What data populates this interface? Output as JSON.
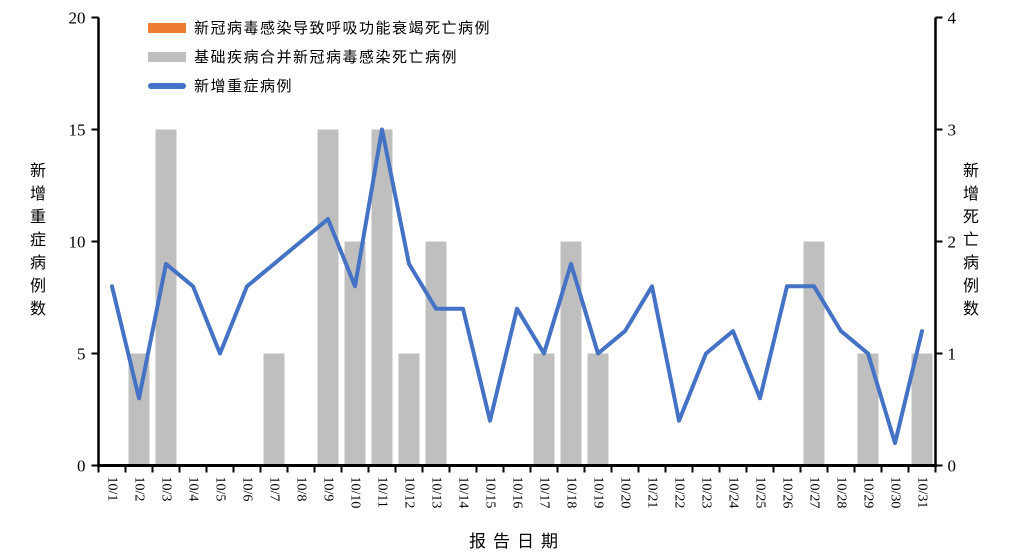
{
  "chart_data": {
    "type": "bar+line",
    "title": "",
    "xlabel": "报告日期",
    "categories": [
      "10/1",
      "10/2",
      "10/3",
      "10/4",
      "10/5",
      "10/6",
      "10/7",
      "10/8",
      "10/9",
      "10/10",
      "10/11",
      "10/12",
      "10/13",
      "10/14",
      "10/15",
      "10/16",
      "10/17",
      "10/18",
      "10/19",
      "10/20",
      "10/21",
      "10/22",
      "10/23",
      "10/24",
      "10/25",
      "10/26",
      "10/27",
      "10/28",
      "10/29",
      "10/30",
      "10/31"
    ],
    "series": [
      {
        "name": "新冠病毒感染导致呼吸功能衰竭死亡病例",
        "type": "bar",
        "axis": "right",
        "color": "#ED7D31",
        "values": [
          0,
          0,
          0,
          0,
          0,
          0,
          0,
          0,
          0,
          0,
          0,
          0,
          0,
          0,
          0,
          0,
          0,
          0,
          0,
          0,
          0,
          0,
          0,
          0,
          0,
          0,
          0,
          0,
          0,
          0,
          0
        ]
      },
      {
        "name": "基础疾病合并新冠病毒感染死亡病例",
        "type": "bar",
        "axis": "right",
        "color": "#BFBFBF",
        "values": [
          0,
          1,
          3,
          0,
          0,
          0,
          1,
          0,
          3,
          2,
          3,
          1,
          2,
          0,
          0,
          0,
          1,
          2,
          1,
          0,
          0,
          0,
          0,
          0,
          0,
          0,
          2,
          0,
          1,
          0,
          1
        ]
      },
      {
        "name": "新增重症病例",
        "type": "line",
        "axis": "left",
        "color": "#4472C4",
        "values": [
          8,
          3,
          9,
          8,
          5,
          8,
          9,
          10,
          11,
          8,
          15,
          9,
          7,
          7,
          2,
          7,
          5,
          9,
          5,
          6,
          8,
          2,
          5,
          6,
          3,
          8,
          8,
          6,
          5,
          1,
          6
        ]
      }
    ],
    "left_axis": {
      "label": "新增重症病例数",
      "min": 0,
      "max": 20,
      "ticks": [
        0,
        5,
        10,
        15,
        20
      ]
    },
    "right_axis": {
      "label": "新增死亡病例数",
      "min": 0,
      "max": 4,
      "ticks": [
        0,
        1,
        2,
        3,
        4
      ]
    },
    "legend_position": "top-left",
    "grid": false,
    "axis_color": "#000000",
    "background_color": "#FFFFFF"
  }
}
